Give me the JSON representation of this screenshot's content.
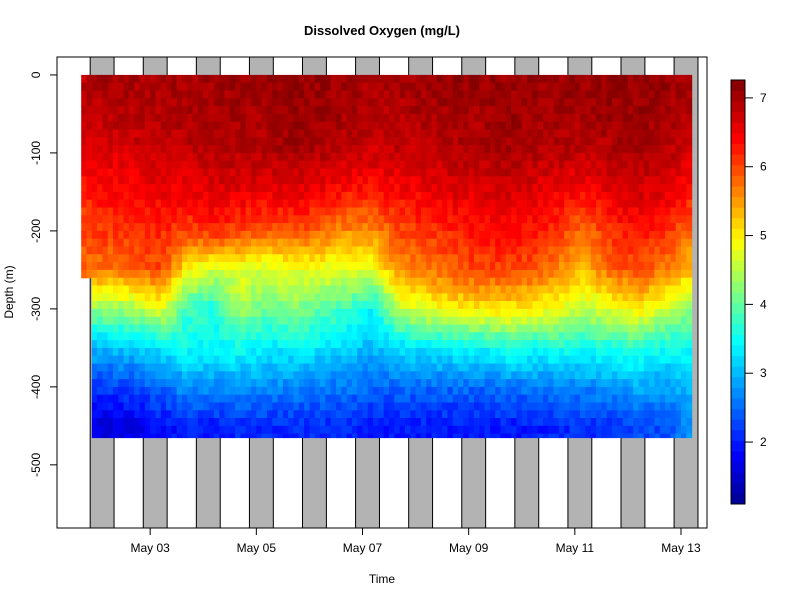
{
  "chart_data": {
    "type": "heatmap",
    "title": "Dissolved Oxygen (mg/L)",
    "xlabel": "Time",
    "ylabel": "Depth (m)",
    "x_unit": "day of May",
    "xlim": [
      1.245,
      13.49
    ],
    "ylim": [
      -581,
      23
    ],
    "x_ticks": [
      3,
      5,
      7,
      9,
      11,
      13
    ],
    "x_tick_labels": [
      "May 03",
      "May 05",
      "May 07",
      "May 09",
      "May 11",
      "May 13"
    ],
    "y_ticks": [
      0,
      -100,
      -200,
      -300,
      -400,
      -500
    ],
    "y_tick_labels": [
      "0",
      "-100",
      "-200",
      "-300",
      "-400",
      "-500"
    ],
    "night_shading": {
      "color": "#b3b3b3",
      "days": [
        2,
        3,
        4,
        5,
        6,
        7,
        8,
        9,
        10,
        11,
        12,
        13
      ],
      "start_offset_day": -0.13,
      "end_offset_day": 0.32
    },
    "colorbar": {
      "range": [
        1.1,
        7.26
      ],
      "ticks": [
        2,
        3,
        4,
        5,
        6,
        7
      ],
      "tick_labels": [
        "2",
        "3",
        "4",
        "5",
        "6",
        "7"
      ],
      "colormap": [
        "#00008f",
        "#0000ff",
        "#00ffff",
        "#ffff00",
        "#ff0000",
        "#800000"
      ]
    },
    "depths": [
      0,
      -50,
      -100,
      -150,
      -200,
      -250,
      -300,
      -350,
      -400,
      -450
    ],
    "max_depth": -465,
    "times": [
      1.7,
      2.2,
      2.7,
      3.2,
      3.7,
      4.2,
      4.7,
      5.2,
      5.7,
      6.2,
      6.7,
      7.2,
      7.7,
      8.2,
      8.7,
      9.2,
      9.7,
      10.2,
      10.7,
      11.2,
      11.7,
      12.2,
      12.7,
      13.1
    ],
    "values": [
      [
        6.9,
        6.8,
        6.6,
        6.2,
        6.0,
        5.8,
        null,
        null,
        null,
        null
      ],
      [
        7.0,
        6.9,
        6.6,
        6.4,
        6.1,
        5.7,
        4.3,
        3.0,
        2.2,
        1.6
      ],
      [
        7.0,
        6.9,
        6.7,
        6.4,
        6.1,
        5.8,
        4.4,
        3.1,
        2.3,
        1.7
      ],
      [
        7.0,
        6.9,
        6.8,
        6.5,
        6.2,
        6.0,
        4.8,
        3.3,
        2.5,
        1.9
      ],
      [
        7.0,
        7.0,
        6.8,
        6.5,
        6.0,
        5.0,
        3.8,
        3.5,
        2.8,
        2.0
      ],
      [
        7.0,
        7.0,
        6.9,
        6.6,
        6.2,
        4.6,
        3.6,
        3.4,
        2.7,
        2.0
      ],
      [
        7.1,
        7.0,
        6.9,
        6.6,
        6.0,
        4.8,
        4.4,
        3.5,
        2.8,
        2.1
      ],
      [
        7.1,
        7.0,
        6.9,
        6.5,
        5.9,
        4.6,
        4.0,
        3.3,
        2.7,
        2.1
      ],
      [
        7.1,
        7.1,
        7.0,
        6.6,
        6.0,
        4.8,
        4.2,
        3.4,
        2.7,
        2.1
      ],
      [
        7.1,
        7.1,
        6.9,
        6.5,
        5.8,
        4.8,
        4.0,
        3.3,
        2.6,
        2.1
      ],
      [
        7.0,
        7.0,
        6.8,
        6.3,
        5.6,
        4.7,
        3.8,
        3.2,
        2.6,
        2.1
      ],
      [
        7.0,
        6.9,
        6.7,
        6.3,
        5.6,
        4.8,
        3.4,
        3.0,
        2.5,
        2.0
      ],
      [
        7.0,
        6.9,
        6.8,
        6.4,
        6.0,
        5.6,
        4.6,
        3.2,
        2.5,
        2.0
      ],
      [
        7.1,
        7.0,
        6.8,
        6.5,
        6.1,
        5.7,
        4.8,
        3.3,
        2.5,
        2.0
      ],
      [
        7.1,
        7.0,
        6.9,
        6.6,
        6.2,
        5.9,
        5.0,
        3.4,
        2.5,
        2.0
      ],
      [
        7.1,
        7.0,
        6.9,
        6.6,
        6.3,
        6.0,
        5.0,
        3.4,
        2.5,
        2.0
      ],
      [
        7.1,
        7.1,
        7.0,
        6.7,
        6.4,
        6.0,
        5.1,
        3.6,
        2.6,
        2.0
      ],
      [
        7.1,
        7.0,
        6.9,
        6.6,
        6.3,
        5.9,
        5.0,
        3.5,
        2.6,
        2.0
      ],
      [
        7.1,
        7.0,
        6.9,
        6.5,
        6.1,
        5.6,
        4.8,
        3.6,
        2.7,
        2.1
      ],
      [
        7.1,
        7.0,
        6.8,
        6.4,
        5.7,
        5.3,
        4.6,
        3.5,
        2.7,
        2.1
      ],
      [
        7.1,
        7.1,
        6.9,
        6.6,
        6.2,
        5.8,
        4.8,
        3.6,
        2.8,
        2.2
      ],
      [
        7.1,
        7.1,
        7.0,
        6.7,
        6.3,
        6.0,
        5.0,
        3.7,
        2.9,
        2.3
      ],
      [
        7.1,
        7.0,
        6.9,
        6.6,
        6.2,
        5.7,
        4.6,
        3.5,
        2.8,
        2.3
      ],
      [
        7.0,
        6.9,
        6.7,
        6.3,
        5.8,
        5.3,
        4.3,
        3.5,
        3.0,
        2.7
      ]
    ]
  }
}
